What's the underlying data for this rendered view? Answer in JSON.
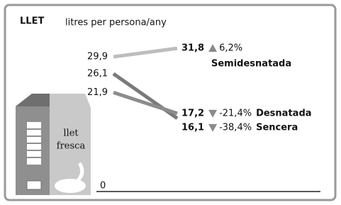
{
  "chart_data": {
    "type": "slope",
    "title": "LLET",
    "subtitle": "litres per persona/any",
    "ylim": [
      0,
      35
    ],
    "yticks": [
      0
    ],
    "illustration_text": [
      "llet",
      "fresca"
    ],
    "series": [
      {
        "name": "Semidesnatada",
        "color": "#bdbdbd",
        "values": [
          29.9,
          31.8
        ],
        "value_labels": [
          "29,9",
          "31,8"
        ],
        "change": 6.2,
        "change_label": "6,2%"
      },
      {
        "name": "Sencera",
        "color": "#7a7a7a",
        "values": [
          26.1,
          16.1
        ],
        "value_labels": [
          "26,1",
          "16,1"
        ],
        "change": -38.4,
        "change_label": "-38,4%"
      },
      {
        "name": "Desnatada",
        "color": "#8c8c8c",
        "values": [
          21.9,
          17.2
        ],
        "value_labels": [
          "21,9",
          "17,2"
        ],
        "change": -21.4,
        "change_label": "-21,4%"
      }
    ]
  }
}
